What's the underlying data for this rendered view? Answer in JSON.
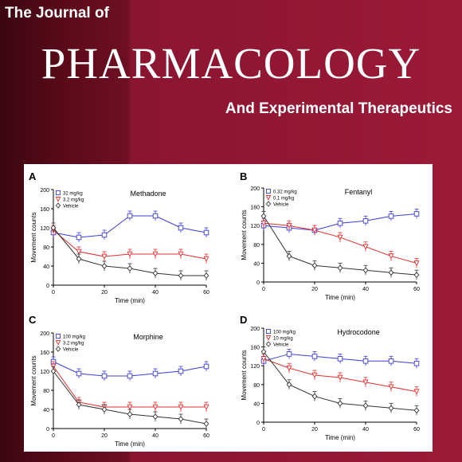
{
  "cover": {
    "title_line1": "The Journal of",
    "title_main": "PHARMACOLOGY",
    "title_line2": "And Experimental Therapeutics",
    "colors": {
      "bg_dark": "#3a0610",
      "bg_main": "#9b1a38",
      "text": "#ffffff"
    }
  },
  "chart_data": [
    {
      "type": "line",
      "panel_letter": "A",
      "title": "Methadone",
      "xlabel": "Time (min)",
      "ylabel": "Movement counts",
      "xlim": [
        0,
        60
      ],
      "ylim": [
        0,
        200
      ],
      "xticks": [
        "0",
        "20",
        "40",
        "60"
      ],
      "yticks": [
        "0",
        "40",
        "80",
        "120",
        "160",
        "200"
      ],
      "legend_position": "top-left",
      "x": [
        0,
        10,
        20,
        30,
        40,
        50,
        60
      ],
      "series": [
        {
          "name": "32 mg/kg",
          "color": "#3b3bd6",
          "marker": "square",
          "values": [
            110,
            100,
            105,
            145,
            145,
            120,
            110
          ]
        },
        {
          "name": "3.2 mg/kg",
          "color": "#e03030",
          "marker": "triangle",
          "values": [
            115,
            70,
            60,
            65,
            65,
            65,
            55
          ]
        },
        {
          "name": "Vehicle",
          "color": "#333333",
          "marker": "diamond",
          "values": [
            120,
            55,
            40,
            35,
            25,
            20,
            20
          ]
        }
      ]
    },
    {
      "type": "line",
      "panel_letter": "B",
      "title": "Fentanyl",
      "xlabel": "Time (min)",
      "ylabel": "Movement counts",
      "xlim": [
        0,
        60
      ],
      "ylim": [
        0,
        200
      ],
      "xticks": [
        "0",
        "20",
        "40",
        "60"
      ],
      "yticks": [
        "0",
        "40",
        "80",
        "120",
        "160",
        "200"
      ],
      "legend_position": "top-left",
      "x": [
        0,
        10,
        20,
        30,
        40,
        50,
        60
      ],
      "series": [
        {
          "name": "0.32 mg/kg",
          "color": "#3b3bd6",
          "marker": "square",
          "values": [
            120,
            115,
            110,
            125,
            130,
            140,
            145
          ]
        },
        {
          "name": "0.1 mg/kg",
          "color": "#e03030",
          "marker": "triangle",
          "values": [
            125,
            120,
            110,
            95,
            75,
            55,
            40
          ]
        },
        {
          "name": "Vehicle",
          "color": "#333333",
          "marker": "diamond",
          "values": [
            140,
            55,
            35,
            30,
            25,
            20,
            15
          ]
        }
      ]
    },
    {
      "type": "line",
      "panel_letter": "C",
      "title": "Morphine",
      "xlabel": "Time (min)",
      "ylabel": "Movement counts",
      "xlim": [
        0,
        60
      ],
      "ylim": [
        0,
        200
      ],
      "xticks": [
        "0",
        "20",
        "40",
        "60"
      ],
      "yticks": [
        "0",
        "40",
        "80",
        "120",
        "160",
        "200"
      ],
      "legend_position": "top-left",
      "x": [
        0,
        10,
        20,
        30,
        40,
        50,
        60
      ],
      "series": [
        {
          "name": "100 mg/kg",
          "color": "#3b3bd6",
          "marker": "square",
          "values": [
            140,
            115,
            110,
            110,
            115,
            120,
            130
          ]
        },
        {
          "name": "3.2 mg/kg",
          "color": "#e03030",
          "marker": "triangle",
          "values": [
            130,
            55,
            45,
            45,
            45,
            45,
            45
          ]
        },
        {
          "name": "Vehicle",
          "color": "#333333",
          "marker": "diamond",
          "values": [
            120,
            50,
            40,
            30,
            25,
            20,
            10
          ]
        }
      ]
    },
    {
      "type": "line",
      "panel_letter": "D",
      "title": "Hydrocodone",
      "xlabel": "Time (min)",
      "ylabel": "Movement counts",
      "xlim": [
        0,
        60
      ],
      "ylim": [
        0,
        200
      ],
      "xticks": [
        "0",
        "20",
        "40",
        "60"
      ],
      "yticks": [
        "0",
        "40",
        "80",
        "120",
        "160",
        "200"
      ],
      "legend_position": "top-left",
      "x": [
        0,
        10,
        20,
        30,
        40,
        50,
        60
      ],
      "series": [
        {
          "name": "100 mg/kg",
          "color": "#3b3bd6",
          "marker": "square",
          "values": [
            130,
            145,
            140,
            135,
            130,
            130,
            125
          ]
        },
        {
          "name": "10 mg/kg",
          "color": "#e03030",
          "marker": "triangle",
          "values": [
            135,
            115,
            100,
            95,
            85,
            75,
            65
          ]
        },
        {
          "name": "Vehicle",
          "color": "#333333",
          "marker": "diamond",
          "values": [
            150,
            80,
            55,
            40,
            35,
            30,
            25
          ]
        }
      ]
    }
  ]
}
